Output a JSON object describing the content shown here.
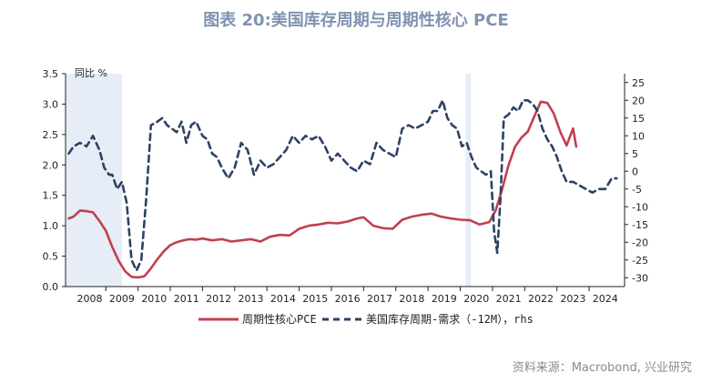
{
  "title": "图表 20:美国库存周期与周期性核心 PCE",
  "source": "资料来源：Macrobond, 兴业研究",
  "chart_data": {
    "type": "line",
    "left_axis_label": "同比 %",
    "x_tick_labels": [
      "2008",
      "2009",
      "2010",
      "2011",
      "2012",
      "2013",
      "2014",
      "2015",
      "2016",
      "2017",
      "2018",
      "2019",
      "2020",
      "2021",
      "2022",
      "2023",
      "2024"
    ],
    "xlim": [
      2007.75,
      2025.1
    ],
    "ylim_left": [
      0.0,
      3.5
    ],
    "ylim_right": [
      -32.5,
      27.5
    ],
    "y_left_ticks": [
      "0.0",
      "0.5",
      "1.0",
      "1.5",
      "2.0",
      "2.5",
      "3.0",
      "3.5"
    ],
    "y_right_ticks": [
      "-30",
      "-25",
      "-20",
      "-15",
      "-10",
      "-5",
      "0",
      "5",
      "10",
      "15",
      "20",
      "25"
    ],
    "shaded_periods": [
      [
        2007.75,
        2009.5
      ],
      [
        2020.17,
        2020.33
      ]
    ],
    "colors": {
      "pce": "#c0404f",
      "inventory": "#2d4263",
      "shade": "#e6edf7"
    },
    "series": [
      {
        "name": "周期性核心PCE",
        "axis": "left",
        "style": "solid",
        "x": [
          2007.85,
          2008.0,
          2008.2,
          2008.4,
          2008.6,
          2008.8,
          2009.0,
          2009.2,
          2009.4,
          2009.6,
          2009.8,
          2010.0,
          2010.2,
          2010.4,
          2010.6,
          2010.8,
          2011.0,
          2011.2,
          2011.4,
          2011.6,
          2011.8,
          2012.0,
          2012.3,
          2012.6,
          2012.9,
          2013.2,
          2013.5,
          2013.8,
          2014.1,
          2014.4,
          2014.7,
          2015.0,
          2015.3,
          2015.6,
          2015.9,
          2016.2,
          2016.5,
          2016.8,
          2017.0,
          2017.3,
          2017.6,
          2017.9,
          2018.2,
          2018.5,
          2018.8,
          2019.1,
          2019.4,
          2019.7,
          2020.0,
          2020.3,
          2020.6,
          2020.9,
          2021.1,
          2021.3,
          2021.5,
          2021.7,
          2021.9,
          2022.1,
          2022.3,
          2022.5,
          2022.7,
          2022.9,
          2023.1,
          2023.3,
          2023.5,
          2023.6
        ],
        "values": [
          1.12,
          1.15,
          1.25,
          1.24,
          1.22,
          1.08,
          0.92,
          0.65,
          0.42,
          0.25,
          0.16,
          0.15,
          0.17,
          0.3,
          0.45,
          0.58,
          0.68,
          0.73,
          0.76,
          0.78,
          0.77,
          0.79,
          0.76,
          0.78,
          0.74,
          0.76,
          0.78,
          0.74,
          0.82,
          0.85,
          0.84,
          0.95,
          1.0,
          1.02,
          1.05,
          1.04,
          1.07,
          1.12,
          1.14,
          1.0,
          0.96,
          0.95,
          1.1,
          1.15,
          1.18,
          1.2,
          1.15,
          1.12,
          1.1,
          1.09,
          1.02,
          1.06,
          1.25,
          1.6,
          2.0,
          2.3,
          2.45,
          2.55,
          2.8,
          3.04,
          3.02,
          2.85,
          2.55,
          2.32,
          2.6,
          2.3
        ]
      },
      {
        "name": "美国库存周期-需求（-12M），rhs",
        "axis": "right",
        "style": "dashed",
        "x": [
          2007.85,
          2008.0,
          2008.2,
          2008.4,
          2008.6,
          2008.8,
          2008.95,
          2009.1,
          2009.2,
          2009.35,
          2009.5,
          2009.65,
          2009.8,
          2009.95,
          2010.1,
          2010.25,
          2010.4,
          2010.6,
          2010.75,
          2010.9,
          2011.05,
          2011.2,
          2011.35,
          2011.5,
          2011.65,
          2011.8,
          2012.0,
          2012.15,
          2012.3,
          2012.45,
          2012.6,
          2012.8,
          2013.0,
          2013.2,
          2013.4,
          2013.6,
          2013.8,
          2014.0,
          2014.2,
          2014.4,
          2014.6,
          2014.8,
          2015.0,
          2015.2,
          2015.4,
          2015.6,
          2015.8,
          2016.0,
          2016.2,
          2016.4,
          2016.6,
          2016.8,
          2017.0,
          2017.2,
          2017.4,
          2017.6,
          2017.8,
          2018.0,
          2018.2,
          2018.4,
          2018.6,
          2018.8,
          2019.0,
          2019.15,
          2019.3,
          2019.45,
          2019.6,
          2019.75,
          2019.9,
          2020.05,
          2020.2,
          2020.35,
          2020.5,
          2020.65,
          2020.8,
          2020.95,
          2021.05,
          2021.15,
          2021.25,
          2021.35,
          2021.5,
          2021.65,
          2021.8,
          2021.95,
          2022.1,
          2022.25,
          2022.4,
          2022.55,
          2022.7,
          2022.85,
          2023.0,
          2023.15,
          2023.3,
          2023.5,
          2023.7,
          2023.9,
          2024.1,
          2024.3,
          2024.5,
          2024.7,
          2024.85
        ],
        "values": [
          5,
          7,
          8,
          7,
          10,
          6,
          1,
          -1,
          -1,
          -5,
          -3,
          -9,
          -25,
          -28,
          -25,
          -8,
          13,
          14,
          15,
          13,
          12,
          11,
          14,
          8,
          13,
          14,
          10,
          9,
          5,
          4,
          1,
          -2,
          1,
          8,
          6,
          -1,
          3,
          1,
          2,
          4,
          6,
          10,
          8,
          10,
          9,
          10,
          7,
          3,
          5,
          3,
          1,
          0,
          3,
          2,
          8,
          6,
          5,
          4,
          12,
          13,
          12,
          13,
          14,
          17,
          17,
          20,
          15,
          13,
          12,
          7,
          8,
          4,
          1,
          0,
          -1,
          0,
          -17,
          -23,
          -7,
          15,
          16,
          18,
          17,
          20,
          20,
          19,
          17,
          12,
          9,
          7,
          4,
          0,
          -3,
          -3,
          -4,
          -5,
          -6,
          -5,
          -5,
          -2,
          -2
        ]
      }
    ]
  },
  "legend": {
    "pce_label": "周期性核心PCE",
    "inventory_label": "美国库存周期-需求（-12M），rhs"
  }
}
